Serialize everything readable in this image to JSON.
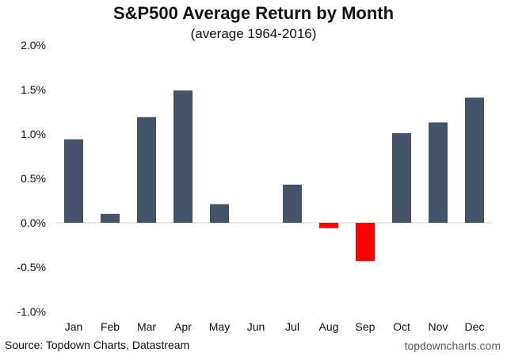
{
  "chart_data": {
    "type": "bar",
    "title": "S&P500 Average Return by Month",
    "subtitle": "(average 1964-2016)",
    "categories": [
      "Jan",
      "Feb",
      "Mar",
      "Apr",
      "May",
      "Jun",
      "Jul",
      "Aug",
      "Sep",
      "Oct",
      "Nov",
      "Dec"
    ],
    "values": [
      0.94,
      0.1,
      1.19,
      1.49,
      0.21,
      0.0,
      0.43,
      -0.06,
      -0.43,
      1.01,
      1.13,
      1.41
    ],
    "ylim": [
      -1.0,
      2.0
    ],
    "yticks": [
      -1.0,
      -0.5,
      0.0,
      0.5,
      1.0,
      1.5,
      2.0
    ],
    "ytick_labels": [
      "-1.0%",
      "-0.5%",
      "0.0%",
      "0.5%",
      "1.0%",
      "1.5%",
      "2.0%"
    ],
    "xlabel": "",
    "ylabel": "",
    "grid": false,
    "legend": false,
    "colors": {
      "positive": "#44536a",
      "negative": "#ff0000",
      "zero_line": "#d0d0d0"
    }
  },
  "footer": {
    "source": "Source: Topdown Charts, Datastream",
    "brand": "topdowncharts.com"
  }
}
